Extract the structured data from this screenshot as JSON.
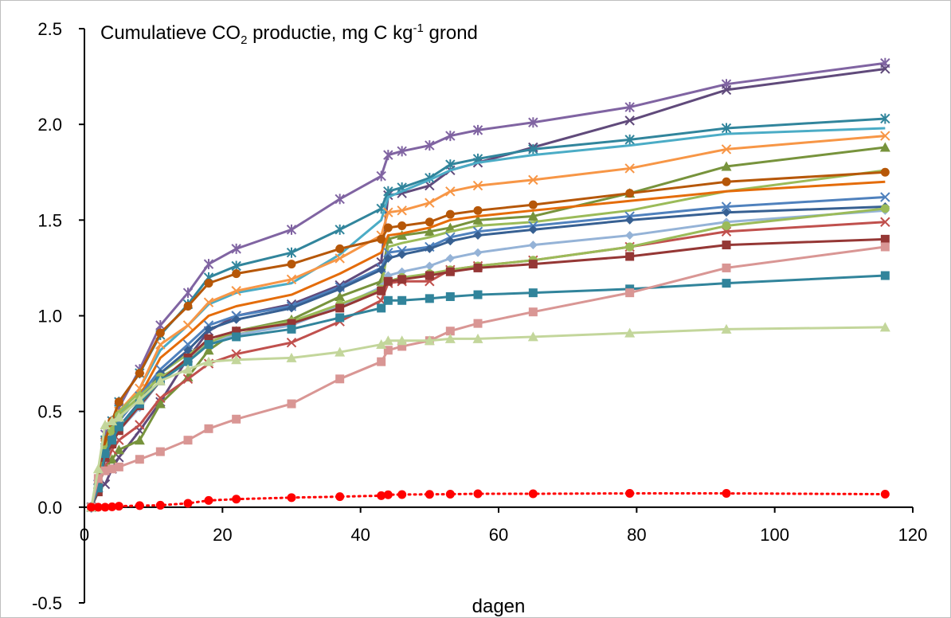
{
  "chart_data": {
    "type": "line",
    "title_parts": {
      "prefix": "Cumulatieve CO",
      "sub": "2",
      "middle": " productie, mg C kg",
      "sup": "-1",
      "suffix": " grond"
    },
    "xlabel": "dagen",
    "ylabel": "",
    "xlim": [
      0,
      120
    ],
    "ylim": [
      -0.5,
      2.5
    ],
    "x_ticks": [
      "0",
      "20",
      "40",
      "60",
      "80",
      "100",
      "120"
    ],
    "y_ticks": [
      "2.5",
      "2.0",
      "1.5",
      "1.0",
      "0.5",
      "0.0",
      "-0.5"
    ],
    "grid": false,
    "legend": "none",
    "x": [
      1,
      2,
      3,
      4,
      5,
      8,
      11,
      15,
      18,
      22,
      30,
      37,
      43,
      44,
      46,
      50,
      53,
      57,
      65,
      79,
      93,
      116
    ],
    "series": [
      {
        "color": "#8064a2",
        "marker": "star",
        "values": [
          0,
          0.12,
          0.38,
          0.45,
          0.52,
          0.72,
          0.95,
          1.12,
          1.27,
          1.35,
          1.45,
          1.61,
          1.73,
          1.84,
          1.86,
          1.89,
          1.94,
          1.97,
          2.01,
          2.09,
          2.21,
          2.32
        ]
      },
      {
        "color": "#604a7b",
        "marker": "x",
        "values": [
          0,
          0.1,
          0.12,
          0.2,
          0.26,
          0.4,
          0.55,
          0.78,
          0.92,
          1.0,
          1.06,
          1.16,
          1.28,
          1.63,
          1.64,
          1.68,
          1.76,
          1.8,
          1.88,
          2.02,
          2.18,
          2.29
        ]
      },
      {
        "color": "#31859c",
        "marker": "star",
        "values": [
          0,
          0.12,
          0.35,
          0.45,
          0.55,
          0.7,
          0.9,
          1.06,
          1.2,
          1.26,
          1.33,
          1.45,
          1.56,
          1.65,
          1.67,
          1.72,
          1.79,
          1.82,
          1.87,
          1.92,
          1.98,
          2.03
        ]
      },
      {
        "color": "#4bacc6",
        "marker": "none",
        "values": [
          0,
          0.1,
          0.3,
          0.4,
          0.48,
          0.62,
          0.82,
          0.95,
          1.06,
          1.12,
          1.17,
          1.32,
          1.5,
          1.62,
          1.65,
          1.71,
          1.76,
          1.8,
          1.84,
          1.89,
          1.95,
          1.98
        ]
      },
      {
        "color": "#f79646",
        "marker": "x",
        "values": [
          0,
          0.1,
          0.3,
          0.4,
          0.5,
          0.62,
          0.85,
          0.95,
          1.07,
          1.13,
          1.19,
          1.3,
          1.42,
          1.54,
          1.55,
          1.59,
          1.65,
          1.68,
          1.71,
          1.77,
          1.87,
          1.94
        ]
      },
      {
        "color": "#77933c",
        "marker": "triangle",
        "values": [
          0,
          0.12,
          0.2,
          0.25,
          0.3,
          0.35,
          0.54,
          0.68,
          0.82,
          0.92,
          0.98,
          1.1,
          1.18,
          1.4,
          1.42,
          1.44,
          1.46,
          1.5,
          1.52,
          1.64,
          1.78,
          1.88
        ]
      },
      {
        "color": "#9bbb59",
        "marker": "none",
        "values": [
          0,
          0.14,
          0.3,
          0.4,
          0.5,
          0.6,
          0.7,
          0.8,
          0.86,
          0.9,
          0.97,
          1.05,
          1.14,
          1.36,
          1.38,
          1.41,
          1.44,
          1.47,
          1.49,
          1.55,
          1.65,
          1.76
        ]
      },
      {
        "color": "#c0504d",
        "marker": "x",
        "values": [
          0,
          0.1,
          0.22,
          0.3,
          0.35,
          0.43,
          0.57,
          0.67,
          0.75,
          0.8,
          0.86,
          0.97,
          1.08,
          1.17,
          1.18,
          1.18,
          1.24,
          1.26,
          1.29,
          1.36,
          1.44,
          1.49
        ]
      },
      {
        "color": "#b65708",
        "marker": "circle",
        "values": [
          0,
          0.12,
          0.35,
          0.45,
          0.55,
          0.7,
          0.91,
          1.05,
          1.17,
          1.22,
          1.27,
          1.35,
          1.4,
          1.46,
          1.47,
          1.49,
          1.53,
          1.55,
          1.58,
          1.64,
          1.7,
          1.75
        ]
      },
      {
        "color": "#e46c0a",
        "marker": "none",
        "values": [
          0,
          0.1,
          0.28,
          0.38,
          0.46,
          0.58,
          0.78,
          0.9,
          1.0,
          1.05,
          1.11,
          1.22,
          1.33,
          1.42,
          1.43,
          1.46,
          1.5,
          1.52,
          1.55,
          1.6,
          1.65,
          1.7
        ]
      },
      {
        "color": "#4f81bd",
        "marker": "x",
        "values": [
          0,
          0.1,
          0.3,
          0.38,
          0.45,
          0.58,
          0.72,
          0.85,
          0.95,
          1.0,
          1.05,
          1.15,
          1.25,
          1.33,
          1.34,
          1.36,
          1.41,
          1.44,
          1.47,
          1.52,
          1.57,
          1.62
        ]
      },
      {
        "color": "#376092",
        "marker": "diamond",
        "values": [
          0,
          0.08,
          0.28,
          0.35,
          0.42,
          0.55,
          0.7,
          0.82,
          0.93,
          0.98,
          1.04,
          1.14,
          1.24,
          1.3,
          1.32,
          1.35,
          1.39,
          1.42,
          1.45,
          1.5,
          1.54,
          1.57
        ]
      },
      {
        "color": "#95b3d7",
        "marker": "diamond",
        "values": [
          0,
          0.08,
          0.25,
          0.33,
          0.4,
          0.52,
          0.66,
          0.77,
          0.86,
          0.9,
          0.95,
          1.05,
          1.15,
          1.21,
          1.23,
          1.26,
          1.3,
          1.33,
          1.37,
          1.42,
          1.49,
          1.55
        ]
      },
      {
        "color": "#9bbb59",
        "marker": "circle",
        "values": [
          0,
          0.1,
          0.3,
          0.4,
          0.48,
          0.58,
          0.68,
          0.76,
          0.86,
          0.92,
          0.97,
          1.06,
          1.14,
          1.18,
          1.2,
          1.22,
          1.24,
          1.26,
          1.29,
          1.36,
          1.47,
          1.56
        ]
      },
      {
        "color": "#953735",
        "marker": "square",
        "values": [
          0,
          0.08,
          0.26,
          0.33,
          0.4,
          0.53,
          0.66,
          0.78,
          0.88,
          0.92,
          0.96,
          1.04,
          1.13,
          1.18,
          1.19,
          1.21,
          1.23,
          1.25,
          1.27,
          1.31,
          1.37,
          1.4
        ]
      },
      {
        "color": "#31849b",
        "marker": "square",
        "values": [
          0,
          0.1,
          0.28,
          0.35,
          0.42,
          0.54,
          0.66,
          0.76,
          0.85,
          0.89,
          0.93,
          0.99,
          1.04,
          1.08,
          1.08,
          1.09,
          1.1,
          1.11,
          1.12,
          1.14,
          1.17,
          1.21
        ]
      },
      {
        "color": "#d99694",
        "marker": "square",
        "values": [
          0,
          0.15,
          0.19,
          0.2,
          0.21,
          0.25,
          0.29,
          0.35,
          0.41,
          0.46,
          0.54,
          0.67,
          0.76,
          0.82,
          0.84,
          0.87,
          0.92,
          0.96,
          1.02,
          1.12,
          1.25,
          1.36
        ]
      },
      {
        "color": "#c3d69b",
        "marker": "triangle",
        "values": [
          0,
          0.2,
          0.43,
          0.45,
          0.47,
          0.56,
          0.66,
          0.72,
          0.76,
          0.77,
          0.78,
          0.81,
          0.85,
          0.87,
          0.87,
          0.87,
          0.88,
          0.88,
          0.89,
          0.91,
          0.93,
          0.94
        ]
      },
      {
        "color": "#ff0000",
        "marker": "circle",
        "dashed": true,
        "values": [
          0,
          0,
          0,
          0.002,
          0.005,
          0.008,
          0.01,
          0.02,
          0.035,
          0.042,
          0.05,
          0.055,
          0.06,
          0.065,
          0.066,
          0.067,
          0.068,
          0.07,
          0.07,
          0.072,
          0.072,
          0.068
        ]
      }
    ]
  }
}
